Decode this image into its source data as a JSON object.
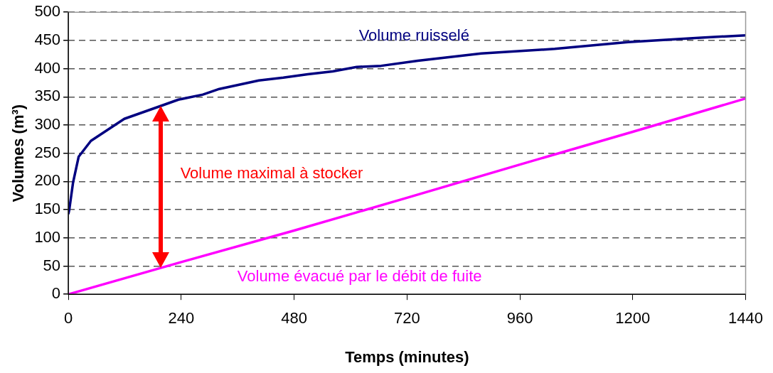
{
  "chart_data": {
    "type": "line",
    "xlabel": "Temps (minutes)",
    "ylabel": "Volumes (m³)",
    "xlim": [
      0,
      1440
    ],
    "xticks": [
      0,
      240,
      480,
      720,
      960,
      1200,
      1440
    ],
    "ylim": [
      0,
      500
    ],
    "yticks": [
      0,
      50,
      100,
      150,
      200,
      250,
      300,
      350,
      400,
      450,
      500
    ],
    "grid": "y",
    "legend": false,
    "marker": "none",
    "series": [
      {
        "name": "Volume ruisselé",
        "color": "#000080",
        "x": [
          0,
          2,
          10,
          22,
          48,
          119,
          197,
          234,
          286,
          321,
          405,
          457,
          509,
          562,
          613,
          665,
          743,
          878,
          1034,
          1190,
          1346,
          1440
        ],
        "values": [
          142,
          150,
          198,
          244,
          272,
          311,
          334,
          345,
          354,
          364,
          379,
          384,
          390,
          395,
          403,
          405,
          414,
          427,
          435,
          447,
          455,
          459
        ]
      },
      {
        "name": "Volume évacué par le débit de fuite",
        "color": "#ff00ff",
        "x": [
          0,
          240,
          480,
          720,
          960,
          1200,
          1440
        ],
        "values": [
          0,
          57,
          113,
          171,
          230,
          288,
          347
        ]
      }
    ],
    "annotations": [
      "Volume maximal à stocker"
    ]
  }
}
